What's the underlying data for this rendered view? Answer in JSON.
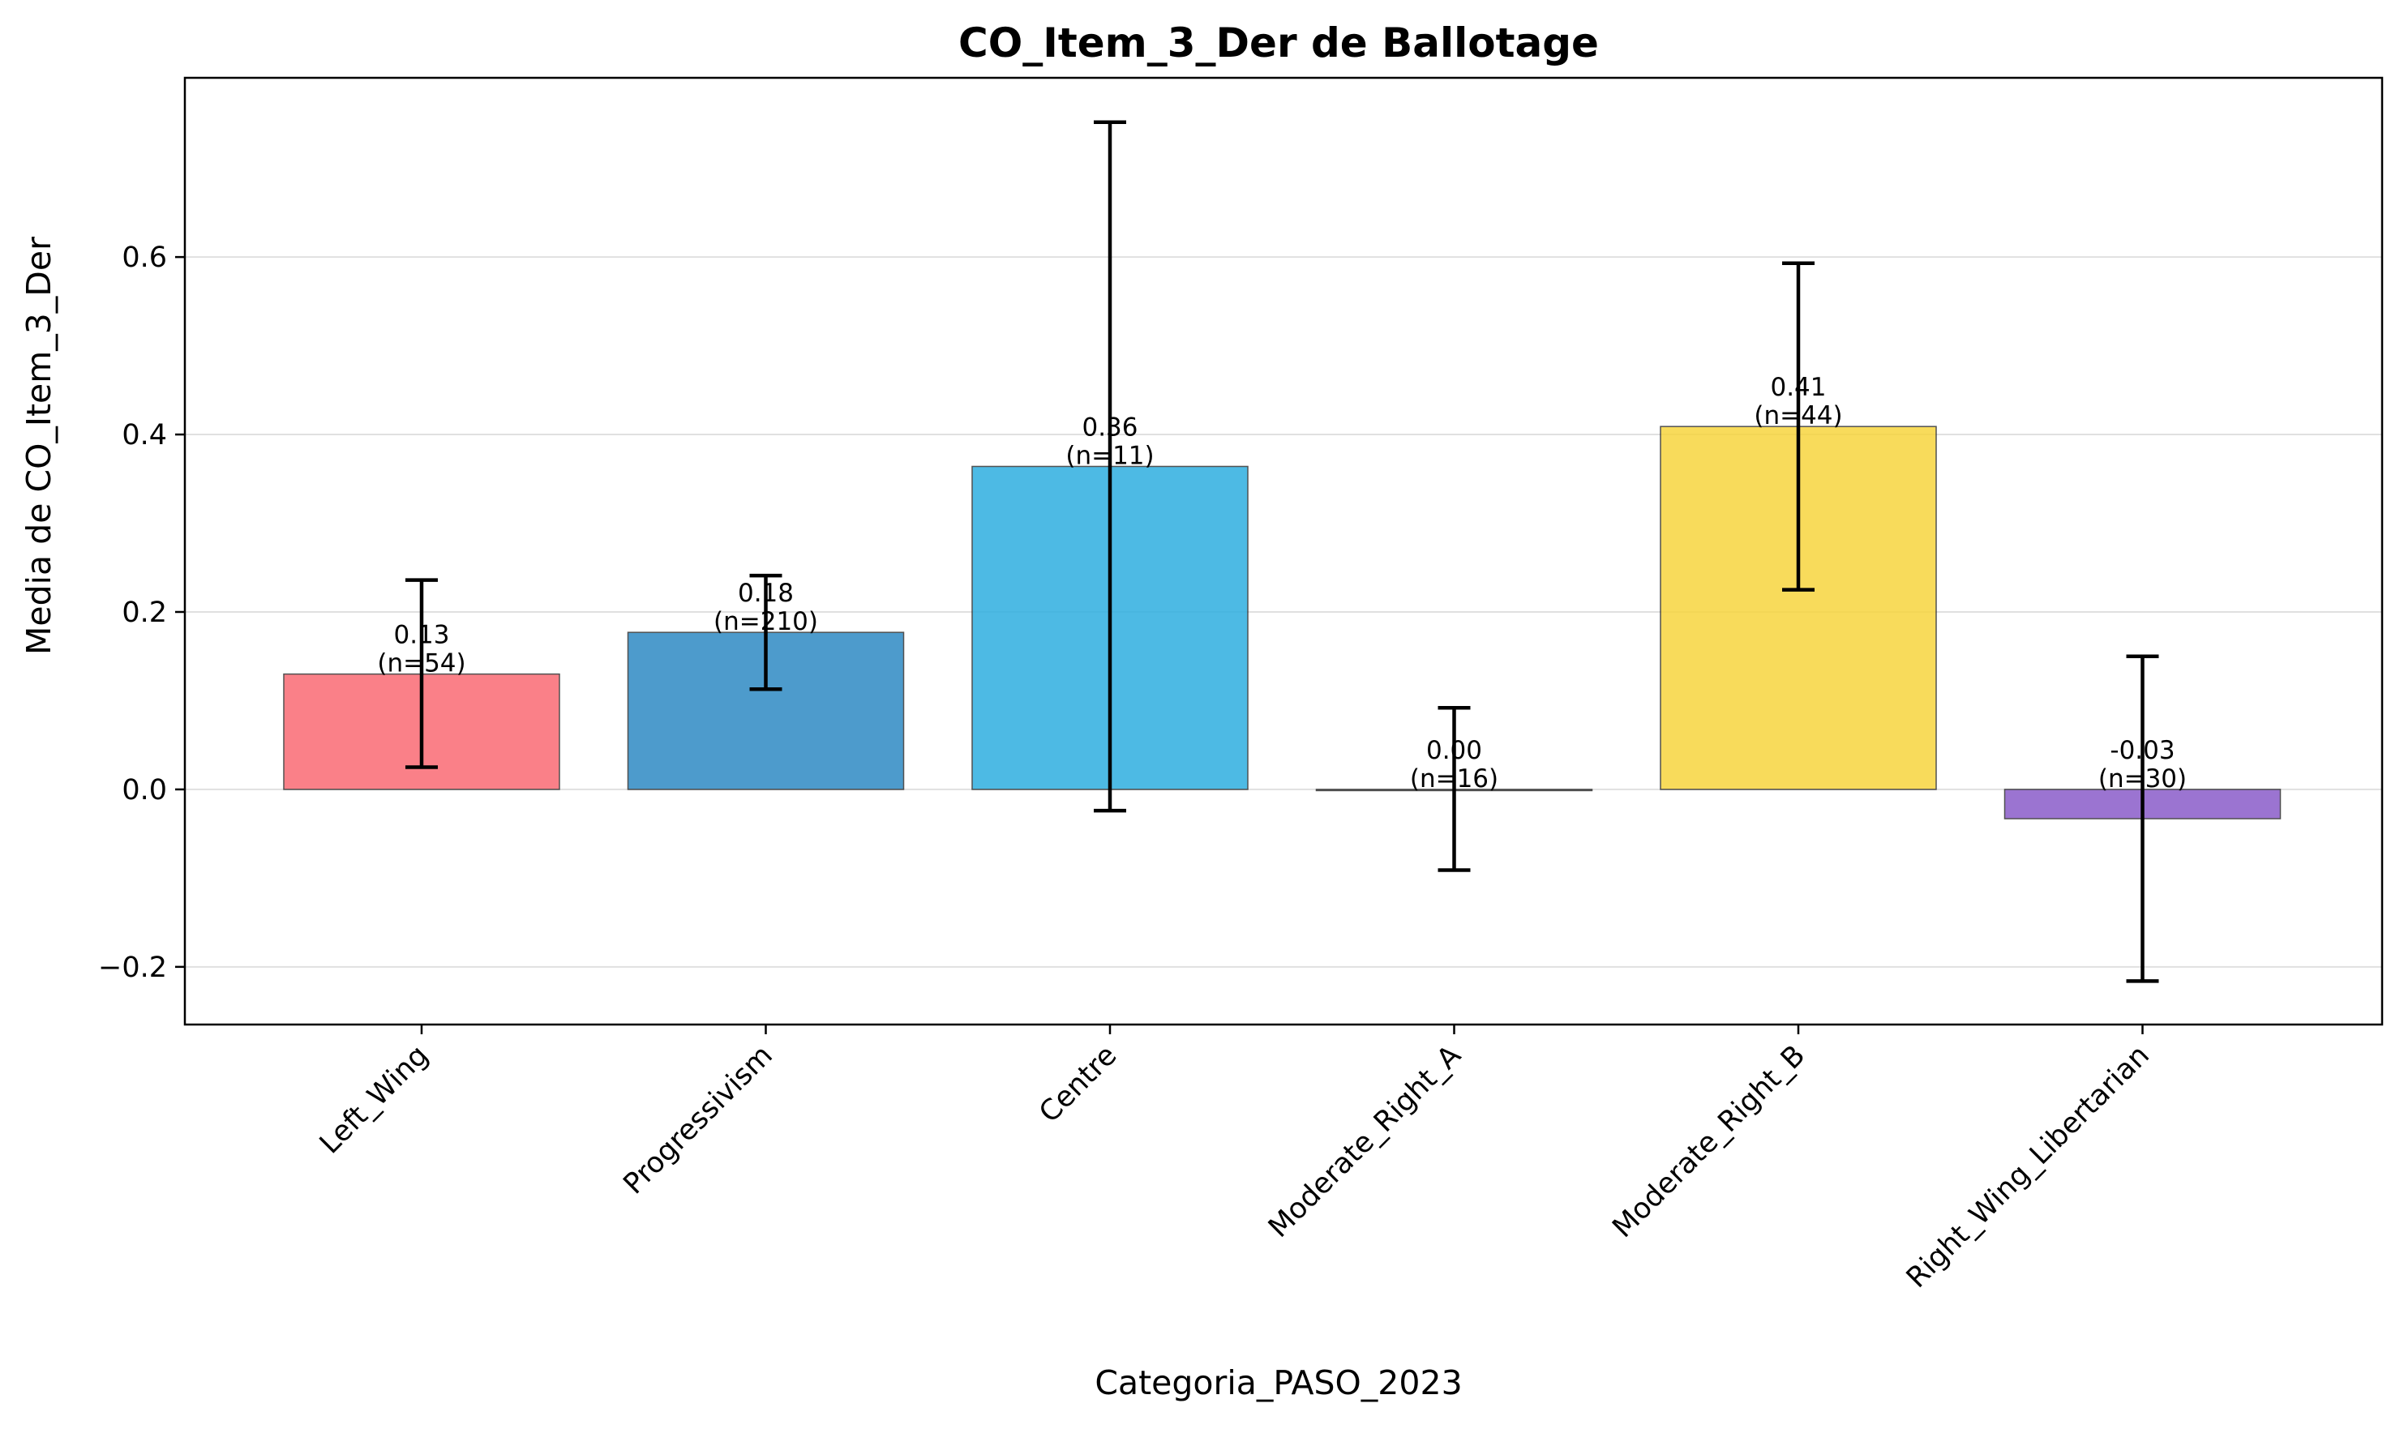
{
  "chart_data": {
    "type": "bar",
    "title": "CO_Item_3_Der de Ballotage",
    "xlabel": "Categoria_PASO_2023",
    "ylabel": "Media de CO_Item_3_Der",
    "categories": [
      "Left_Wing",
      "Progressivism",
      "Centre",
      "Moderate_Right_A",
      "Moderate_Right_B",
      "Right_Wing_Libertarian"
    ],
    "values": [
      0.13,
      0.177,
      0.364,
      0.0,
      0.409,
      -0.033
    ],
    "error_low": [
      0.025,
      0.113,
      -0.024,
      -0.091,
      0.225,
      -0.216
    ],
    "error_high": [
      0.236,
      0.241,
      0.752,
      0.092,
      0.593,
      0.15
    ],
    "value_labels": [
      "0.13",
      "0.18",
      "0.36",
      "0.00",
      "0.41",
      "-0.03"
    ],
    "n_labels": [
      "(n=54)",
      "(n=210)",
      "(n=11)",
      "(n=16)",
      "(n=44)",
      "(n=30)"
    ],
    "colors": [
      "#fa6b74",
      "#2f8ac4",
      "#2fafe0",
      "#b0b0b0",
      "#f7d53f",
      "#8a5cc9"
    ],
    "yticks": [
      -0.2,
      0.0,
      0.2,
      0.4,
      0.6
    ],
    "ytick_labels": [
      "−0.2",
      "0.0",
      "0.2",
      "0.4",
      "0.6"
    ],
    "ylim": [
      -0.265,
      0.802
    ],
    "grid": true
  }
}
